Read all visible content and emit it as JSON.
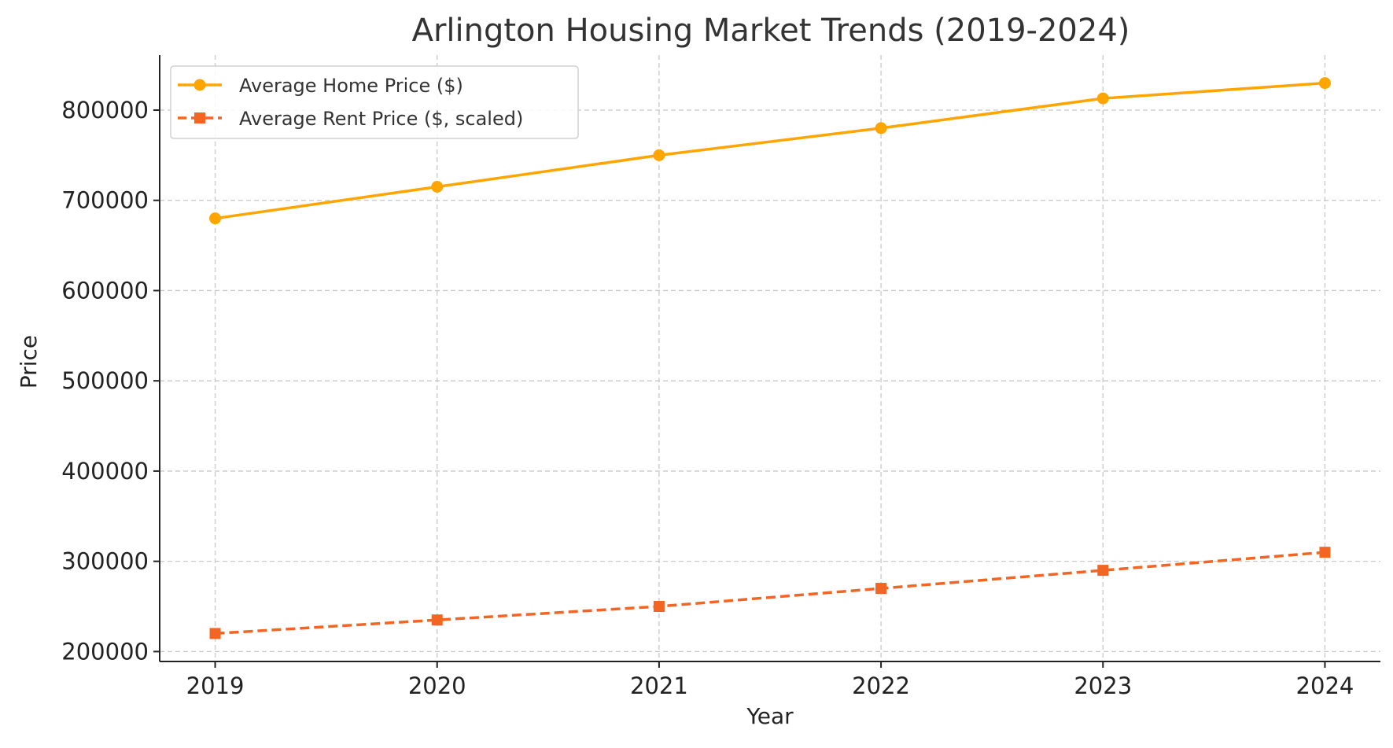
{
  "chart_data": {
    "type": "line",
    "title": "Arlington Housing Market Trends (2019-2024)",
    "xlabel": "Year",
    "ylabel": "Price",
    "x": [
      2019,
      2020,
      2021,
      2022,
      2023,
      2024
    ],
    "x_tick_labels": [
      "2019",
      "2020",
      "2021",
      "2022",
      "2023",
      "2024"
    ],
    "y_ticks": [
      200000,
      300000,
      400000,
      500000,
      600000,
      700000,
      800000
    ],
    "y_tick_labels": [
      "200000",
      "300000",
      "400000",
      "500000",
      "600000",
      "700000",
      "800000"
    ],
    "xlim": [
      2018.75,
      2024.25
    ],
    "ylim": [
      189000,
      861000
    ],
    "grid": true,
    "legend_position": "top-left",
    "series": [
      {
        "name": "Average Home Price ($)",
        "values": [
          680000,
          715000,
          750000,
          780000,
          813000,
          830000
        ],
        "color": "#FFA500",
        "marker": "circle",
        "line_style": "solid"
      },
      {
        "name": "Average Rent Price ($, scaled)",
        "values": [
          220000,
          235000,
          250000,
          270000,
          290000,
          310000
        ],
        "color": "#F26522",
        "marker": "square",
        "line_style": "dashed"
      }
    ]
  }
}
